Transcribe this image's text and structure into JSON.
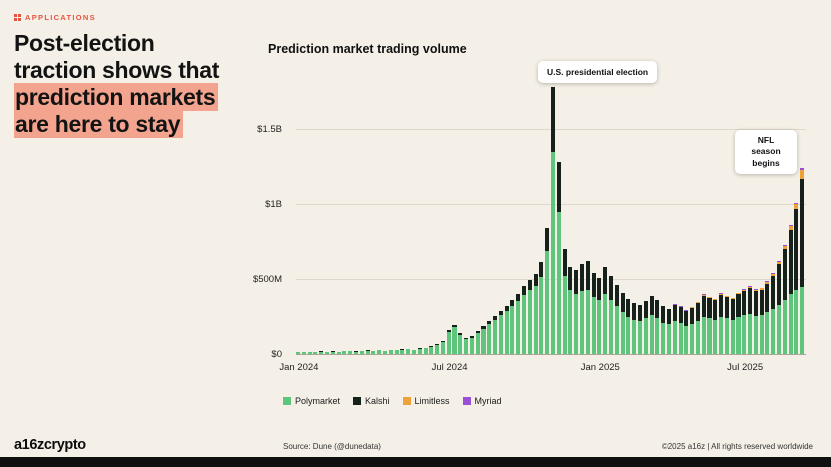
{
  "page": {
    "tag": "APPLICATIONS",
    "headline_plain": "Post-election traction shows that ",
    "headline_highlight": "prediction markets are here to stay",
    "footer": {
      "logo": "a16zcrypto",
      "source": "Source: Dune (@dunedata)",
      "copyright": "©2025 a16z | All rights reserved worldwide"
    }
  },
  "chart_data": {
    "type": "bar",
    "stacked": true,
    "title": "Prediction market trading volume",
    "values_unit": "USD millions per week",
    "ylim": [
      0,
      1867
    ],
    "grid": true,
    "legend_position": "bottom",
    "y_ticks": [
      {
        "value": 0,
        "label": "$0"
      },
      {
        "value": 500,
        "label": "$500M"
      },
      {
        "value": 1000,
        "label": "$1B"
      },
      {
        "value": 1500,
        "label": "$1.5B"
      }
    ],
    "x_ticks": [
      {
        "index": 0,
        "label": "Jan 2024"
      },
      {
        "index": 26,
        "label": "Jul 2024"
      },
      {
        "index": 52,
        "label": "Jan 2025"
      },
      {
        "index": 77,
        "label": "Jul 2025"
      }
    ],
    "series": [
      {
        "name": "Polymarket",
        "color": "#5fc57c"
      },
      {
        "name": "Kalshi",
        "color": "#17211b"
      },
      {
        "name": "Limitless",
        "color": "#f0a23a"
      },
      {
        "name": "Myriad",
        "color": "#9b4fd6"
      }
    ],
    "annotations": [
      {
        "text": "U.S. presidential election"
      },
      {
        "text": "NFL season begins"
      }
    ],
    "weeks": [
      [
        14,
        1,
        0,
        0
      ],
      [
        11,
        1,
        0,
        0
      ],
      [
        15,
        1,
        0,
        0
      ],
      [
        12,
        1,
        0,
        0
      ],
      [
        16,
        1,
        0,
        0
      ],
      [
        13,
        1,
        0,
        0
      ],
      [
        15,
        2,
        0,
        0
      ],
      [
        12,
        1,
        0,
        0
      ],
      [
        17,
        2,
        0,
        0
      ],
      [
        18,
        2,
        0,
        0
      ],
      [
        15,
        2,
        0,
        0
      ],
      [
        20,
        2,
        0,
        0
      ],
      [
        22,
        2,
        0,
        0
      ],
      [
        19,
        2,
        0,
        0
      ],
      [
        24,
        3,
        0,
        0
      ],
      [
        21,
        2,
        0,
        0
      ],
      [
        26,
        3,
        0,
        0
      ],
      [
        24,
        3,
        0,
        0
      ],
      [
        28,
        3,
        0,
        0
      ],
      [
        31,
        3,
        0,
        0
      ],
      [
        26,
        3,
        0,
        0
      ],
      [
        33,
        4,
        0,
        0
      ],
      [
        38,
        4,
        0,
        0
      ],
      [
        47,
        5,
        0,
        0
      ],
      [
        58,
        6,
        0,
        0
      ],
      [
        82,
        8,
        0,
        0
      ],
      [
        148,
        12,
        0,
        0
      ],
      [
        178,
        15,
        0,
        0
      ],
      [
        128,
        12,
        0,
        0
      ],
      [
        98,
        10,
        0,
        0
      ],
      [
        108,
        12,
        0,
        0
      ],
      [
        138,
        15,
        0,
        0
      ],
      [
        168,
        18,
        0,
        0
      ],
      [
        198,
        22,
        0,
        0
      ],
      [
        228,
        25,
        0,
        0
      ],
      [
        258,
        30,
        0,
        0
      ],
      [
        288,
        34,
        0,
        0
      ],
      [
        318,
        40,
        0,
        0
      ],
      [
        355,
        48,
        0,
        0
      ],
      [
        395,
        58,
        0,
        0
      ],
      [
        425,
        68,
        0,
        0
      ],
      [
        455,
        80,
        0,
        0
      ],
      [
        515,
        100,
        0,
        0
      ],
      [
        690,
        150,
        0,
        0
      ],
      [
        1350,
        430,
        0,
        0
      ],
      [
        950,
        330,
        0,
        0
      ],
      [
        520,
        180,
        0,
        0
      ],
      [
        430,
        150,
        0,
        0
      ],
      [
        400,
        160,
        0,
        0
      ],
      [
        420,
        180,
        0,
        0
      ],
      [
        430,
        190,
        0,
        0
      ],
      [
        380,
        160,
        0,
        0
      ],
      [
        360,
        150,
        0,
        0
      ],
      [
        400,
        180,
        0,
        0
      ],
      [
        360,
        160,
        0,
        0
      ],
      [
        320,
        140,
        0,
        0
      ],
      [
        280,
        130,
        0,
        0
      ],
      [
        250,
        120,
        0,
        0
      ],
      [
        230,
        110,
        0,
        0
      ],
      [
        220,
        105,
        0,
        0
      ],
      [
        240,
        115,
        0,
        0
      ],
      [
        260,
        130,
        0,
        0
      ],
      [
        240,
        120,
        0,
        0
      ],
      [
        210,
        110,
        0,
        0
      ],
      [
        200,
        100,
        0,
        0
      ],
      [
        220,
        110,
        0,
        2
      ],
      [
        210,
        105,
        0,
        2
      ],
      [
        190,
        100,
        0,
        2
      ],
      [
        200,
        110,
        5,
        2
      ],
      [
        220,
        120,
        5,
        2
      ],
      [
        250,
        140,
        6,
        2
      ],
      [
        240,
        135,
        6,
        2
      ],
      [
        230,
        130,
        6,
        2
      ],
      [
        250,
        145,
        7,
        2
      ],
      [
        240,
        140,
        7,
        2
      ],
      [
        230,
        135,
        7,
        2
      ],
      [
        250,
        150,
        8,
        2
      ],
      [
        260,
        160,
        8,
        3
      ],
      [
        270,
        170,
        9,
        3
      ],
      [
        255,
        165,
        9,
        3
      ],
      [
        260,
        170,
        10,
        3
      ],
      [
        280,
        190,
        12,
        3
      ],
      [
        300,
        220,
        14,
        4
      ],
      [
        330,
        270,
        16,
        4
      ],
      [
        360,
        340,
        20,
        5
      ],
      [
        400,
        430,
        25,
        5
      ],
      [
        430,
        540,
        30,
        6
      ],
      [
        450,
        720,
        60,
        8
      ]
    ]
  }
}
